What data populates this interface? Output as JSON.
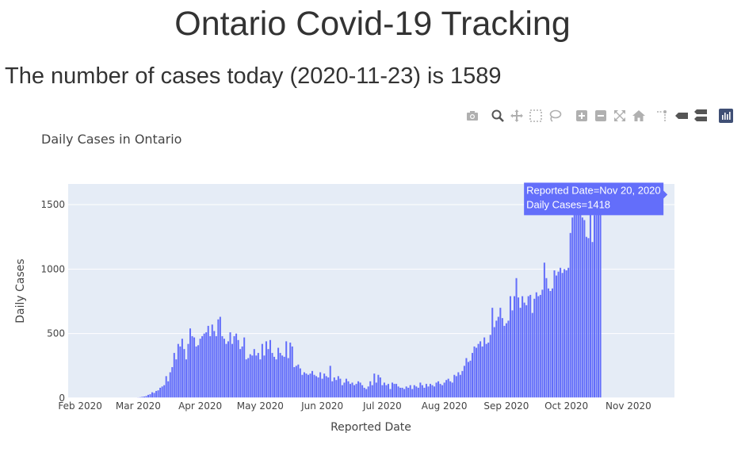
{
  "header": {
    "title": "Ontario Covid-19 Tracking",
    "subtitle": "The number of cases today (2020-11-23) is 1589"
  },
  "modebar": {
    "icons": [
      "camera-icon",
      "zoom-icon",
      "pan-icon",
      "box-select-icon",
      "lasso-select-icon",
      "zoom-in-icon",
      "zoom-out-icon",
      "autoscale-icon",
      "reset-axes-icon",
      "spike-lines-icon",
      "hover-closest-icon",
      "hover-compare-icon",
      "plotly-logo-icon"
    ]
  },
  "chart_data": {
    "type": "bar",
    "title": "Daily Cases in Ontario",
    "xlabel": "Reported Date",
    "ylabel": "Daily Cases",
    "color": "#636efa",
    "plot_bg": "#e5ecf6",
    "grid": true,
    "ylim": [
      0,
      1660
    ],
    "xlim": [
      "2020-01-26",
      "2020-11-24"
    ],
    "yticks": [
      0,
      500,
      1000,
      1500
    ],
    "ytick_labels": [
      "0",
      "500",
      "1000",
      "1500"
    ],
    "xticks": [
      "2020-02-01",
      "2020-03-01",
      "2020-04-01",
      "2020-05-01",
      "2020-06-01",
      "2020-07-01",
      "2020-08-01",
      "2020-09-01",
      "2020-10-01",
      "2020-11-01"
    ],
    "xtick_labels": [
      "Feb 2020",
      "Mar 2020",
      "Apr 2020",
      "May 2020",
      "Jun 2020",
      "Jul 2020",
      "Aug 2020",
      "Sep 2020",
      "Oct 2020",
      "Nov 2020"
    ],
    "start_date": "2020-01-27",
    "values": [
      1,
      1,
      0,
      0,
      1,
      0,
      1,
      0,
      0,
      0,
      0,
      0,
      0,
      0,
      0,
      0,
      0,
      0,
      0,
      0,
      1,
      0,
      0,
      0,
      0,
      1,
      0,
      0,
      0,
      1,
      1,
      2,
      3,
      2,
      5,
      7,
      10,
      12,
      16,
      25,
      30,
      45,
      40,
      55,
      60,
      80,
      90,
      100,
      170,
      130,
      200,
      240,
      350,
      300,
      420,
      400,
      460,
      380,
      300,
      420,
      540,
      480,
      470,
      400,
      410,
      460,
      480,
      500,
      510,
      560,
      480,
      570,
      520,
      480,
      610,
      630,
      480,
      460,
      420,
      440,
      510,
      420,
      480,
      500,
      450,
      380,
      400,
      470,
      300,
      310,
      340,
      330,
      380,
      330,
      350,
      300,
      420,
      330,
      440,
      380,
      450,
      350,
      320,
      300,
      390,
      350,
      330,
      320,
      440,
      310,
      430,
      400,
      240,
      250,
      260,
      230,
      180,
      200,
      190,
      180,
      190,
      210,
      180,
      170,
      160,
      200,
      150,
      190,
      170,
      160,
      250,
      130,
      160,
      140,
      170,
      150,
      100,
      120,
      150,
      130,
      110,
      120,
      100,
      110,
      130,
      120,
      100,
      80,
      70,
      90,
      130,
      100,
      190,
      120,
      180,
      160,
      100,
      120,
      100,
      110,
      70,
      120,
      110,
      110,
      90,
      80,
      80,
      70,
      90,
      80,
      100,
      70,
      100,
      90,
      80,
      120,
      100,
      80,
      110,
      90,
      110,
      100,
      90,
      120,
      130,
      110,
      100,
      120,
      140,
      150,
      130,
      120,
      180,
      170,
      200,
      180,
      210,
      250,
      310,
      280,
      290,
      350,
      400,
      390,
      420,
      440,
      400,
      470,
      420,
      430,
      490,
      700,
      550,
      600,
      630,
      700,
      620,
      560,
      580,
      600,
      790,
      680,
      790,
      930,
      780,
      700,
      790,
      740,
      720,
      790,
      800,
      660,
      770,
      820,
      790,
      800,
      840,
      1050,
      930,
      850,
      830,
      850,
      990,
      950,
      980,
      1010,
      970,
      1000,
      990,
      1010,
      1280,
      1400,
      1420,
      1500,
      1570,
      1580,
      1400,
      1380,
      1250,
      1240,
      1500,
      1210,
      1418,
      1589,
      1534,
      1589
    ],
    "hover": {
      "date_label": "Reported Date=Nov 20, 2020",
      "value_label": "Daily Cases=1418",
      "bar_date": "2020-11-20",
      "value": 1418
    }
  }
}
